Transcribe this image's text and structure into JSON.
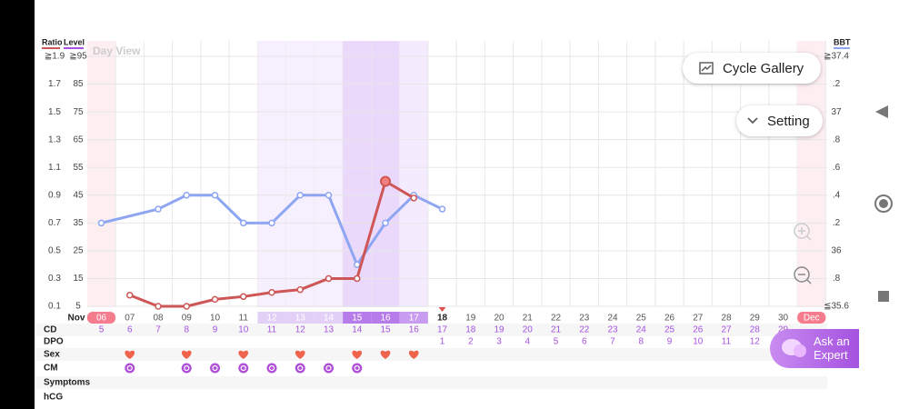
{
  "ui": {
    "day_view": "Day View",
    "cycle_gallery": "Cycle Gallery",
    "setting": "Setting",
    "ask_expert": "Ask an Expert",
    "month": "Nov",
    "row_labels": {
      "cd": "CD",
      "dpo": "DPO",
      "sex": "Sex",
      "cm": "CM",
      "symptoms": "Symptoms",
      "hcg": "hCG"
    }
  },
  "chart_data": {
    "type": "line",
    "level_title": "Level",
    "categories": [
      "06",
      "07",
      "08",
      "09",
      "10",
      "11",
      "12",
      "13",
      "14",
      "15",
      "16",
      "17",
      "18",
      "19",
      "20",
      "21",
      "22",
      "23",
      "24",
      "25",
      "26",
      "27",
      "28",
      "29",
      "30",
      "Dec"
    ],
    "ratio_lim": [
      0.1,
      1.9
    ],
    "ratio_ticks": [
      {
        "value": 1.9,
        "label": "≧1.9"
      },
      1.7,
      1.5,
      1.3,
      1.1,
      0.9,
      0.7,
      0.5,
      0.3,
      0.1
    ],
    "ylim": [
      5,
      95
    ],
    "yticks": [
      {
        "value": 95,
        "label": "≧95"
      },
      85,
      75,
      65,
      55,
      45,
      35,
      25,
      15,
      5
    ],
    "y2lim": [
      35.6,
      37.4
    ],
    "y2ticks": [
      {
        "value": 37.4,
        "label": "≧37.4"
      },
      {
        "value": 37.2,
        "label": ".2"
      },
      37,
      {
        "value": 36.8,
        "label": ".8"
      },
      {
        "value": 36.6,
        "label": ".6"
      },
      {
        "value": 36.4,
        "label": ".4"
      },
      {
        "value": 36.2,
        "label": ".2"
      },
      36,
      {
        "value": 35.8,
        "label": ".8"
      },
      {
        "value": 35.6,
        "label": "≦35.6"
      }
    ],
    "grid": true,
    "series": [
      {
        "name": "BBT",
        "color": "#8ea6f2",
        "axis": "y2",
        "values": [
          36.2,
          null,
          36.3,
          36.4,
          36.4,
          36.2,
          36.2,
          36.4,
          36.4,
          35.9,
          36.2,
          36.4,
          36.3,
          null,
          null,
          null,
          null,
          null,
          null,
          null,
          null,
          null,
          null,
          null,
          null,
          null
        ]
      },
      {
        "name": "Ratio",
        "color": "#cf5656",
        "axis": "ratio",
        "values": [
          null,
          0.18,
          0.1,
          0.1,
          0.15,
          0.17,
          0.2,
          0.22,
          0.3,
          0.3,
          1.0,
          0.88,
          null,
          null,
          null,
          null,
          null,
          null,
          null,
          null,
          null,
          null,
          null,
          null,
          null,
          null
        ]
      }
    ],
    "cd": [
      5,
      6,
      7,
      8,
      9,
      10,
      11,
      12,
      13,
      14,
      15,
      16,
      17,
      18,
      19,
      20,
      21,
      22,
      23,
      24,
      25,
      26,
      27,
      28,
      29,
      null
    ],
    "dpo": [
      null,
      null,
      null,
      null,
      null,
      null,
      null,
      null,
      null,
      null,
      null,
      null,
      1,
      2,
      3,
      4,
      5,
      6,
      7,
      8,
      9,
      10,
      11,
      12,
      null,
      null
    ],
    "sex": [
      false,
      true,
      false,
      true,
      false,
      true,
      false,
      true,
      false,
      true,
      true,
      true,
      false,
      false,
      false,
      false,
      false,
      false,
      false,
      false,
      false,
      false,
      false,
      false,
      false,
      false
    ],
    "cm": [
      false,
      true,
      false,
      true,
      true,
      true,
      true,
      true,
      true,
      true,
      false,
      false,
      false,
      false,
      false,
      false,
      false,
      false,
      false,
      false,
      false,
      false,
      false,
      false,
      false,
      false
    ]
  }
}
